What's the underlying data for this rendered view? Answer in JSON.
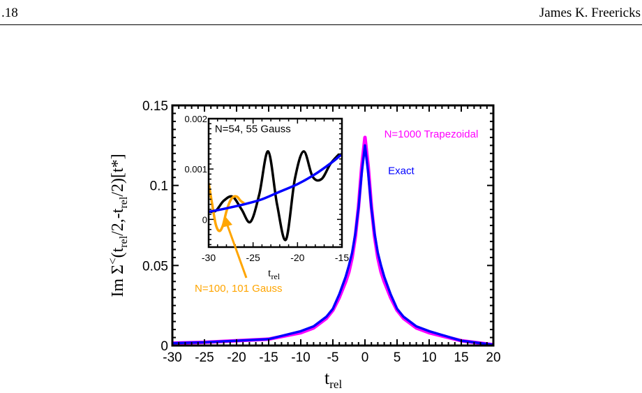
{
  "page_header": {
    "page_number": ".18",
    "author": "James K. Freericks"
  },
  "chart_data": [
    {
      "type": "line",
      "xlabel": "t",
      "xlabel_sub": "rel",
      "ylabel_parts": {
        "prefix": "Im Σ",
        "sup": "<",
        "p1": "(t",
        "sub1": "rel",
        "p2": "/2,-t",
        "sub2": "rel",
        "p3": "/2)[t*]"
      },
      "xlim": [
        -30,
        20
      ],
      "ylim": [
        0,
        0.15
      ],
      "xticks": [
        -30,
        -25,
        -20,
        -15,
        -10,
        -5,
        0,
        5,
        10,
        15,
        20
      ],
      "xtick_labels": [
        "-30",
        "-25",
        "-20",
        "-15",
        "-10",
        "-5",
        "0",
        "5",
        "10",
        "15",
        "20"
      ],
      "yticks": [
        0,
        0.05,
        0.1,
        0.15
      ],
      "ytick_labels": [
        "0",
        "0.05",
        "0.1",
        "0.15"
      ],
      "grid": false,
      "series": [
        {
          "name": "N=1000 Trapezoidal",
          "color": "#ff00ff",
          "x": [
            -30,
            -25,
            -20,
            -15,
            -10,
            -8,
            -6,
            -5,
            -4,
            -3,
            -2.5,
            -2,
            -1.5,
            -1,
            -0.5,
            0,
            0.5,
            1,
            1.5,
            2,
            2.5,
            3,
            4,
            5,
            6,
            8,
            10,
            15,
            20
          ],
          "y": [
            0.0015,
            0.002,
            0.003,
            0.004,
            0.008,
            0.011,
            0.017,
            0.022,
            0.03,
            0.04,
            0.046,
            0.055,
            0.068,
            0.087,
            0.112,
            0.13,
            0.112,
            0.087,
            0.068,
            0.055,
            0.046,
            0.04,
            0.03,
            0.022,
            0.017,
            0.011,
            0.008,
            0.003,
            0.0005
          ]
        },
        {
          "name": "Exact",
          "color": "#0000ff",
          "x": [
            -30,
            -25,
            -20,
            -15,
            -10,
            -8,
            -6,
            -5,
            -4,
            -3,
            -2.5,
            -2,
            -1.5,
            -1,
            -0.5,
            0,
            0.5,
            1,
            1.5,
            2,
            2.5,
            3,
            4,
            5,
            6,
            8,
            10,
            15,
            20
          ],
          "y": [
            0.0015,
            0.002,
            0.003,
            0.004,
            0.009,
            0.012,
            0.018,
            0.023,
            0.032,
            0.043,
            0.05,
            0.058,
            0.07,
            0.086,
            0.108,
            0.125,
            0.108,
            0.086,
            0.07,
            0.058,
            0.05,
            0.043,
            0.032,
            0.023,
            0.018,
            0.012,
            0.009,
            0.003,
            0.0005
          ]
        }
      ],
      "annotations": [
        {
          "text": "N=1000 Trapezoidal",
          "color": "#ff00ff",
          "x": 3,
          "y": 0.13
        },
        {
          "text": "Exact",
          "color": "#0000ff",
          "x": 3.6,
          "y": 0.107
        }
      ]
    },
    {
      "type": "line",
      "inset": true,
      "xlabel": "t",
      "xlabel_sub": "rel",
      "xlim": [
        -30,
        -15
      ],
      "ylim": [
        -0.00055,
        0.002
      ],
      "xticks": [
        -30,
        -25,
        -20,
        -15
      ],
      "xtick_labels": [
        "-30",
        "-25",
        "-20",
        "-15"
      ],
      "yticks": [
        0,
        0.001,
        0.002
      ],
      "ytick_labels": [
        "0",
        "0.001",
        "0.002"
      ],
      "series": [
        {
          "name": "N=54, 55 Gauss",
          "color": "#000000",
          "x": [
            -30,
            -29.2,
            -28.3,
            -27.3,
            -26.3,
            -25.3,
            -24.3,
            -23.3,
            -22.3,
            -21.3,
            -20.3,
            -19.3,
            -18.3,
            -17.3,
            -16.3,
            -15.3
          ],
          "y": [
            0.00015,
            0.00017,
            0.00037,
            0.00045,
            0.0002,
            -5e-05,
            0.0005,
            0.00135,
            0.0003,
            -0.0004,
            0.0008,
            0.00135,
            0.00085,
            0.0008,
            0.0011,
            0.0013
          ]
        },
        {
          "name": "N=100, 101 Gauss",
          "color": "#ffa500",
          "x": [
            -30,
            -29.6,
            -29.2,
            -28.8,
            -28.4,
            -28.0,
            -27.6,
            -27.2,
            -26.8,
            -26.4,
            -26.0
          ],
          "y": [
            0.00072,
            0.0003,
            -0.0001,
            -0.00023,
            -0.00012,
            0.00016,
            0.00036,
            0.00045,
            0.00045,
            0.00037,
            0.00032
          ]
        },
        {
          "name": "Exact",
          "color": "#0000ff",
          "x": [
            -30,
            -28,
            -26,
            -24,
            -22,
            -20,
            -18,
            -16,
            -15
          ],
          "y": [
            0.00015,
            0.00022,
            0.0003,
            0.0004,
            0.00055,
            0.0007,
            0.0009,
            0.00115,
            0.0013
          ]
        }
      ],
      "annotations": [
        {
          "text": "N=54, 55 Gauss",
          "color": "#000000",
          "x": -29.3,
          "y": 0.0018
        },
        {
          "text": "N=100, 101 Gauss",
          "color": "#ffa500"
        }
      ]
    }
  ]
}
